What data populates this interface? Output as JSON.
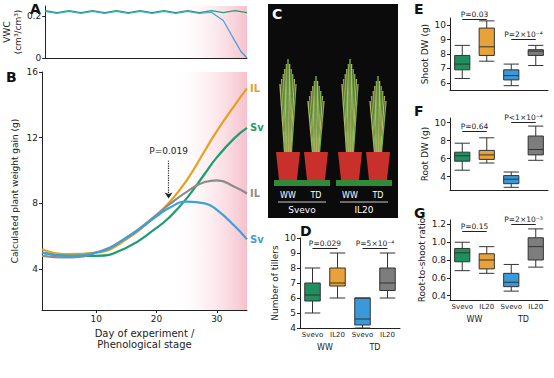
{
  "chart_data": [
    {
      "panel": "A",
      "type": "line",
      "y_label": "VWC\n(cm³/cm³)",
      "xlim": [
        1,
        35
      ],
      "ylim": [
        0,
        0.25
      ],
      "yticks": [
        0,
        0.2
      ],
      "tick_labels": "y",
      "grid": false,
      "shaded_from": 22,
      "series": [
        {
          "color": "#23a070",
          "x": [
            1,
            3,
            5,
            7,
            9,
            11,
            13,
            15,
            17,
            19,
            21,
            23,
            25,
            27,
            29,
            31,
            33,
            35
          ],
          "values": [
            0.228,
            0.218,
            0.228,
            0.218,
            0.228,
            0.218,
            0.228,
            0.218,
            0.228,
            0.218,
            0.228,
            0.218,
            0.228,
            0.218,
            0.228,
            0.218,
            0.228,
            0.218
          ]
        },
        {
          "color": "#3d9fdc",
          "x": [
            1,
            3,
            5,
            7,
            9,
            11,
            13,
            15,
            17,
            19,
            21,
            23,
            25,
            27,
            29,
            31,
            32,
            33,
            34,
            35
          ],
          "values": [
            0.224,
            0.214,
            0.224,
            0.214,
            0.224,
            0.214,
            0.224,
            0.214,
            0.224,
            0.214,
            0.224,
            0.214,
            0.224,
            0.214,
            0.22,
            0.18,
            0.13,
            0.08,
            0.03,
            0
          ]
        }
      ]
    },
    {
      "panel": "B",
      "type": "curve",
      "x_label": "Day of experiment /\nPhenological stage",
      "y_label": "Calculated plant weight gain (g)",
      "xlim": [
        1,
        35
      ],
      "ylim": [
        1.5,
        16
      ],
      "xticks": [
        10,
        20,
        30
      ],
      "yticks": [
        4,
        8,
        12,
        16
      ],
      "grid": false,
      "shaded_from": 22,
      "x": [
        1,
        5,
        10,
        15,
        20,
        22,
        25,
        28,
        30,
        33,
        35
      ],
      "series": [
        {
          "name": "IL",
          "color": "#e8a020",
          "values": [
            5.2,
            4.9,
            5.0,
            5.8,
            7.3,
            8.0,
            9.4,
            11.2,
            12.4,
            14.0,
            15.0
          ]
        },
        {
          "name": "Sv",
          "color": "#1e9e6e",
          "values": [
            5.0,
            4.8,
            4.8,
            5.3,
            6.5,
            7.1,
            8.3,
            9.8,
            10.8,
            12.0,
            12.6
          ]
        },
        {
          "name": "IL",
          "color": "#8c8c8c",
          "values": [
            4.8,
            4.7,
            5.0,
            5.9,
            7.3,
            7.9,
            8.7,
            9.3,
            9.4,
            9.0,
            8.6
          ]
        },
        {
          "name": "Sv",
          "color": "#3da0dc",
          "values": [
            5.0,
            4.8,
            5.0,
            5.9,
            7.2,
            7.7,
            8.1,
            8.0,
            7.6,
            6.6,
            5.8
          ]
        }
      ],
      "annotations": [
        {
          "text": "P=0.019",
          "x": 22,
          "y": [
            10.6,
            8.3
          ]
        }
      ]
    },
    {
      "panel": "D",
      "type": "boxplot",
      "y_label": "Number of tillers",
      "categories": [
        "Svevo",
        "IL20",
        "Svevo",
        "IL20"
      ],
      "groups": [
        "WW",
        "TD"
      ],
      "ylim": [
        4,
        10
      ],
      "yticks": [
        4,
        5,
        6,
        7,
        8,
        9,
        10
      ],
      "grid": false,
      "colors": [
        "#1f8f5f",
        "#e8a23a",
        "#3a9ad9",
        "#7d7d7d"
      ],
      "values": [
        [
          5,
          5.8,
          6.2,
          7,
          8
        ],
        [
          6,
          6.8,
          7,
          8,
          9
        ],
        [
          4,
          4.2,
          4.6,
          6,
          6
        ],
        [
          6,
          6.5,
          7,
          8,
          9
        ]
      ],
      "annotations": [
        {
          "text": "P=0.029",
          "from": 0,
          "to": 1,
          "y": 9.3
        },
        {
          "text": "P=5×10⁻⁴",
          "from": 2,
          "to": 3,
          "y": 9.3
        }
      ]
    },
    {
      "panel": "E",
      "type": "boxplot",
      "y_label": "Shoot DW (g)",
      "categories": [
        "Svevo",
        "IL20",
        "Svevo",
        "IL20"
      ],
      "tick_labels": "y",
      "ylim": [
        5.5,
        10.5
      ],
      "yticks": [
        6,
        7,
        8,
        9,
        10
      ],
      "grid": false,
      "colors": [
        "#1f8f5f",
        "#e8a23a",
        "#3a9ad9",
        "#7d7d7d"
      ],
      "values": [
        [
          6.3,
          6.9,
          7.3,
          7.9,
          8.6
        ],
        [
          7.5,
          7.9,
          8.5,
          9.8,
          10.3
        ],
        [
          5.8,
          6.2,
          6.5,
          6.9,
          7.3
        ],
        [
          7.2,
          7.9,
          8.2,
          8.3,
          8.6
        ]
      ],
      "annotations": [
        {
          "text": "P=0.03",
          "from": 0,
          "to": 1,
          "y": 10.4
        },
        {
          "text": "P=2×10⁻⁴",
          "from": 2,
          "to": 3,
          "y": 9.0
        }
      ]
    },
    {
      "panel": "F",
      "type": "boxplot",
      "y_label": "Root DW (g)",
      "categories": [
        "Svevo",
        "IL20",
        "Svevo",
        "IL20"
      ],
      "tick_labels": "y",
      "ylim": [
        2.5,
        10.5
      ],
      "yticks": [
        4,
        6,
        8,
        10
      ],
      "grid": false,
      "colors": [
        "#1f8f5f",
        "#e8a23a",
        "#3a9ad9",
        "#7d7d7d"
      ],
      "values": [
        [
          4.7,
          5.7,
          6.3,
          6.7,
          7.7
        ],
        [
          5.5,
          5.9,
          6.4,
          6.9,
          8.3
        ],
        [
          2.8,
          3.2,
          3.7,
          4.1,
          4.5
        ],
        [
          5.8,
          6.4,
          7.0,
          8.5,
          9.6
        ]
      ],
      "annotations": [
        {
          "text": "P=0.64",
          "from": 0,
          "to": 1,
          "y": 9.0
        },
        {
          "text": "P<1×10⁻⁴",
          "from": 2,
          "to": 3,
          "y": 10.0
        }
      ]
    },
    {
      "panel": "G",
      "type": "boxplot",
      "y_label": "Root-to-shoot ratio",
      "categories": [
        "Svevo",
        "IL20",
        "Svevo",
        "IL20"
      ],
      "groups": [
        "WW",
        "TD"
      ],
      "ylim": [
        0.35,
        1.25
      ],
      "yticks": [
        0.4,
        0.6,
        0.8,
        {
          "value": 1,
          "label": "1.0"
        },
        1.2
      ],
      "grid": false,
      "colors": [
        "#1f8f5f",
        "#e8a23a",
        "#3a9ad9",
        "#7d7d7d"
      ],
      "values": [
        [
          0.68,
          0.78,
          0.88,
          0.93,
          1.0
        ],
        [
          0.65,
          0.7,
          0.8,
          0.87,
          0.95
        ],
        [
          0.45,
          0.5,
          0.55,
          0.65,
          0.75
        ],
        [
          0.72,
          0.8,
          0.95,
          1.05,
          1.15
        ]
      ],
      "annotations": [
        {
          "text": "P=0.15",
          "from": 0,
          "to": 1,
          "y": 1.12
        },
        {
          "text": "P=2×10⁻³",
          "from": 2,
          "to": 3,
          "y": 1.2
        }
      ]
    }
  ],
  "photo_panel": {
    "panel": "C",
    "conditions": [
      "WW",
      "TD",
      "WW",
      "TD"
    ],
    "genotypes": [
      "Svevo",
      "IL20"
    ]
  }
}
